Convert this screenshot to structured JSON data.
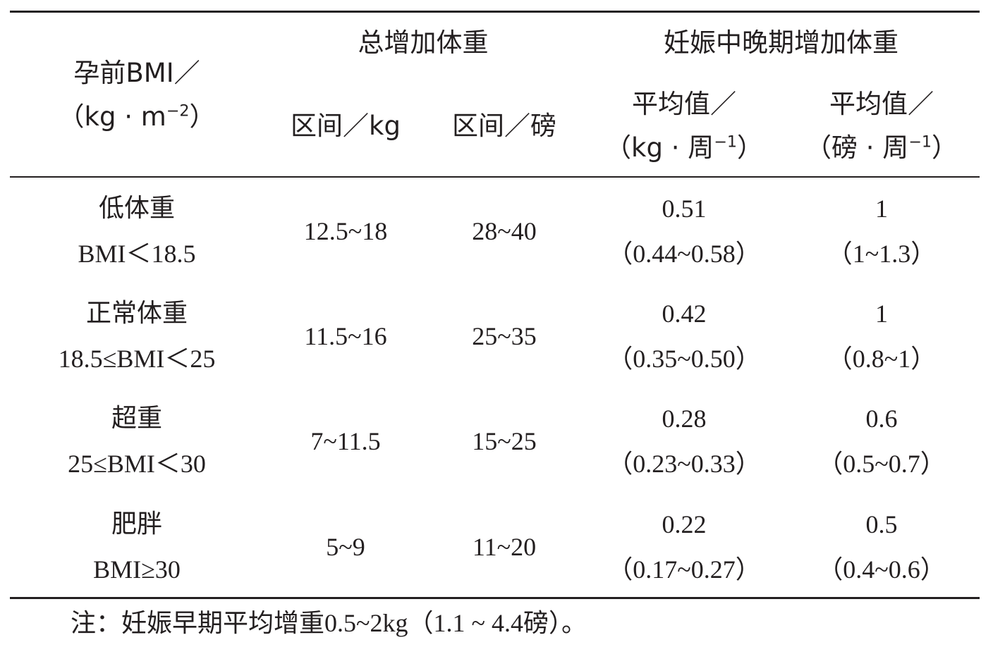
{
  "table": {
    "header": {
      "bmi_line1": "孕前BMI／",
      "bmi_line2_pre": "（kg · m",
      "bmi_line2_sup": "−2",
      "bmi_line2_post": "）",
      "total_gain_title": "总增加体重",
      "mid_late_title": "妊娠中晚期增加体重",
      "range_kg": "区间／kg",
      "range_lb": "区间／磅",
      "mean_kg_line1": "平均值／",
      "mean_kg_line2_pre": "（kg · 周",
      "mean_kg_line2_sup": "−1",
      "mean_kg_line2_post": "）",
      "mean_lb_line1": "平均值／",
      "mean_lb_line2_pre": "（磅 · 周",
      "mean_lb_line2_sup": "−1",
      "mean_lb_line2_post": "）"
    },
    "rows": [
      {
        "category": "低体重",
        "bmi_range": "BMI＜18.5",
        "total_kg": "12.5~18",
        "total_lb": "28~40",
        "mean_kg": "0.51",
        "mean_kg_range": "（0.44~0.58）",
        "mean_lb": "1",
        "mean_lb_range": "（1~1.3）"
      },
      {
        "category": "正常体重",
        "bmi_range": "18.5≤BMI＜25",
        "total_kg": "11.5~16",
        "total_lb": "25~35",
        "mean_kg": "0.42",
        "mean_kg_range": "（0.35~0.50）",
        "mean_lb": "1",
        "mean_lb_range": "（0.8~1）"
      },
      {
        "category": "超重",
        "bmi_range": "25≤BMI＜30",
        "total_kg": "7~11.5",
        "total_lb": "15~25",
        "mean_kg": "0.28",
        "mean_kg_range": "（0.23~0.33）",
        "mean_lb": "0.6",
        "mean_lb_range": "（0.5~0.7）"
      },
      {
        "category": "肥胖",
        "bmi_range": "BMI≥30",
        "total_kg": "5~9",
        "total_lb": "11~20",
        "mean_kg": "0.22",
        "mean_kg_range": "（0.17~0.27）",
        "mean_lb": "0.5",
        "mean_lb_range": "（0.4~0.6）"
      }
    ],
    "note": "注：妊娠早期平均增重0.5~2kg（1.1 ~ 4.4磅）。"
  }
}
